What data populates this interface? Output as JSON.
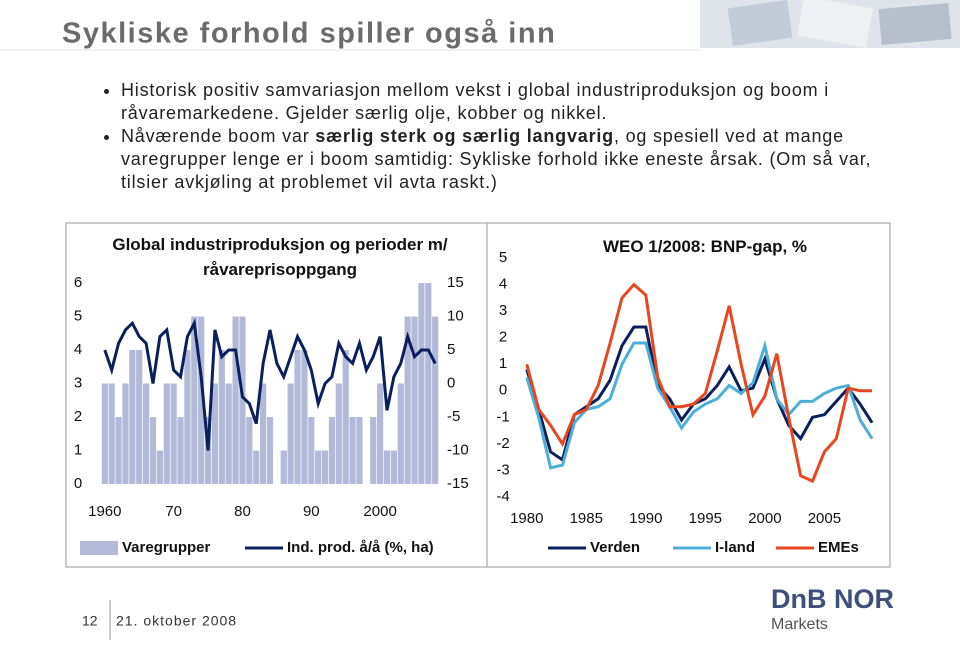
{
  "slide": {
    "title": "Sykliske forhold spiller også inn",
    "bullets": [
      {
        "parts": [
          "Historisk positiv samvariasjon mellom vekst i global industriproduksjon og boom i råvaremarkedene. Gjelder særlig olje, kobber og nikkel."
        ]
      },
      {
        "parts": [
          "Nåværende boom var ",
          "særlig sterk og særlig langvarig",
          ", og spesiell ved at mange varegrupper lenge er i boom samtidig: Sykliske forhold ikke eneste årsak. (Om så var, tilsier avkjøling at problemet vil avta raskt.)"
        ]
      }
    ],
    "page_number": "12",
    "date": "21. oktober 2008",
    "logo": "DnB NOR",
    "logo_sub": "Markets"
  },
  "chart_data": [
    {
      "type": "bar",
      "title": "Global industriproduksjon og perioder m/ råvareprisoppgang",
      "x": [
        1960,
        1961,
        1962,
        1963,
        1964,
        1965,
        1966,
        1967,
        1968,
        1969,
        1970,
        1971,
        1972,
        1973,
        1974,
        1975,
        1976,
        1977,
        1978,
        1979,
        1980,
        1981,
        1982,
        1983,
        1984,
        1985,
        1986,
        1987,
        1988,
        1989,
        1990,
        1991,
        1992,
        1993,
        1994,
        1995,
        1996,
        1997,
        1998,
        1999,
        2000,
        2001,
        2002,
        2003,
        2004,
        2005,
        2006,
        2007,
        2008
      ],
      "xlim": [
        1959.3,
        2008.7
      ],
      "xticks": [
        1960,
        {
          "value": 1970,
          "label": "70"
        },
        {
          "value": 1980,
          "label": "80"
        },
        {
          "value": 1990,
          "label": "90"
        },
        2000
      ],
      "ylim": [
        0,
        6
      ],
      "yticks": [
        0,
        1,
        2,
        3,
        4,
        5,
        6
      ],
      "y2lim": [
        -15,
        15
      ],
      "y2ticks": [
        -15,
        -10,
        -5,
        0,
        5,
        10,
        15
      ],
      "series": [
        {
          "name": "Varegrupper",
          "type": "bar",
          "color": "#b3bad9",
          "values": [
            3,
            3,
            2,
            3,
            4,
            4,
            3,
            2,
            1,
            3,
            3,
            2,
            4,
            5,
            5,
            2,
            3,
            4,
            3,
            5,
            5,
            2,
            1,
            3,
            2,
            0,
            1,
            3,
            4,
            4,
            2,
            1,
            1,
            2,
            3,
            4,
            2,
            2,
            0,
            2,
            3,
            1,
            1,
            3,
            5,
            5,
            6,
            6,
            5
          ]
        },
        {
          "name": "Ind. prod. å/å (%, ha)",
          "type": "line",
          "axis": "y2",
          "color": "#0b1f5e",
          "values": [
            5,
            2,
            6,
            8,
            9,
            7,
            6,
            0,
            7,
            8,
            2,
            1,
            7,
            9,
            1,
            -10,
            8,
            4,
            5,
            5,
            -2,
            -3,
            -6,
            3,
            8,
            3,
            1,
            4,
            7,
            5,
            2,
            -3,
            0,
            1,
            6,
            4,
            3,
            6,
            2,
            4,
            7,
            -4,
            1,
            3,
            7,
            4,
            5,
            5,
            3
          ]
        }
      ]
    },
    {
      "type": "line",
      "title": "WEO 1/2008: BNP-gap, %",
      "x": [
        1980,
        1981,
        1982,
        1983,
        1984,
        1985,
        1986,
        1987,
        1988,
        1989,
        1990,
        1991,
        1992,
        1993,
        1994,
        1995,
        1996,
        1997,
        1998,
        1999,
        2000,
        2001,
        2002,
        2003,
        2004,
        2005,
        2006,
        2007,
        2008,
        2009
      ],
      "xlim": [
        1979.6,
        2009.5
      ],
      "xticks": [
        1980,
        1985,
        1990,
        1995,
        2000,
        2005
      ],
      "ylim": [
        -4,
        5
      ],
      "yticks": [
        -4,
        -3,
        -2,
        -1,
        0,
        1,
        2,
        3,
        4,
        5
      ],
      "series": [
        {
          "name": "Verden",
          "color": "#0b1f5e",
          "values": [
            0.8,
            -0.7,
            -2.3,
            -2.6,
            -0.9,
            -0.6,
            -0.3,
            0.4,
            1.7,
            2.4,
            2.4,
            0.2,
            -0.3,
            -1.1,
            -0.5,
            -0.3,
            0.2,
            0.9,
            0,
            0.1,
            1.2,
            -0.3,
            -1.3,
            -1.8,
            -1,
            -0.9,
            -0.4,
            0.1,
            -0.5,
            -1.2
          ]
        },
        {
          "name": "I-land",
          "color": "#4bafd8",
          "values": [
            0.5,
            -1,
            -2.9,
            -2.8,
            -1.2,
            -0.7,
            -0.6,
            -0.3,
            1,
            1.8,
            1.8,
            0.1,
            -0.6,
            -1.4,
            -0.8,
            -0.5,
            -0.3,
            0.2,
            -0.1,
            0.3,
            1.7,
            -0.3,
            -0.9,
            -0.4,
            -0.4,
            -0.1,
            0.1,
            0.2,
            -1.1,
            -1.8
          ]
        },
        {
          "name": "EMEs",
          "color": "#e8461e",
          "values": [
            1,
            -0.7,
            -1.3,
            -2,
            -0.9,
            -0.7,
            0.2,
            1.8,
            3.5,
            4,
            3.6,
            0.5,
            -0.6,
            -0.6,
            -0.5,
            -0.1,
            1.5,
            3.2,
            1,
            -0.9,
            -0.2,
            1.4,
            -1,
            -3.2,
            -3.4,
            -2.3,
            -1.8,
            0.1,
            0,
            0
          ]
        }
      ]
    }
  ]
}
